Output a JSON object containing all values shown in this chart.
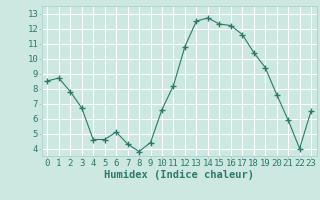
{
  "x": [
    0,
    1,
    2,
    3,
    4,
    5,
    6,
    7,
    8,
    9,
    10,
    11,
    12,
    13,
    14,
    15,
    16,
    17,
    18,
    19,
    20,
    21,
    22,
    23
  ],
  "y": [
    8.5,
    8.7,
    7.8,
    6.7,
    4.6,
    4.6,
    5.1,
    4.3,
    3.8,
    4.4,
    6.6,
    8.2,
    10.8,
    12.5,
    12.7,
    12.3,
    12.2,
    11.6,
    10.4,
    9.4,
    7.6,
    5.9,
    4.0,
    6.5
  ],
  "xlabel": "Humidex (Indice chaleur)",
  "ylim": [
    3.5,
    13.5
  ],
  "xlim": [
    -0.5,
    23.5
  ],
  "yticks": [
    4,
    5,
    6,
    7,
    8,
    9,
    10,
    11,
    12,
    13
  ],
  "xticks": [
    0,
    1,
    2,
    3,
    4,
    5,
    6,
    7,
    8,
    9,
    10,
    11,
    12,
    13,
    14,
    15,
    16,
    17,
    18,
    19,
    20,
    21,
    22,
    23
  ],
  "line_color": "#2d7a6b",
  "marker_color": "#2d7a6b",
  "bg_color": "#cce8e0",
  "grid_color": "#ffffff",
  "axis_label_fontsize": 7.5,
  "tick_fontsize": 6.5
}
